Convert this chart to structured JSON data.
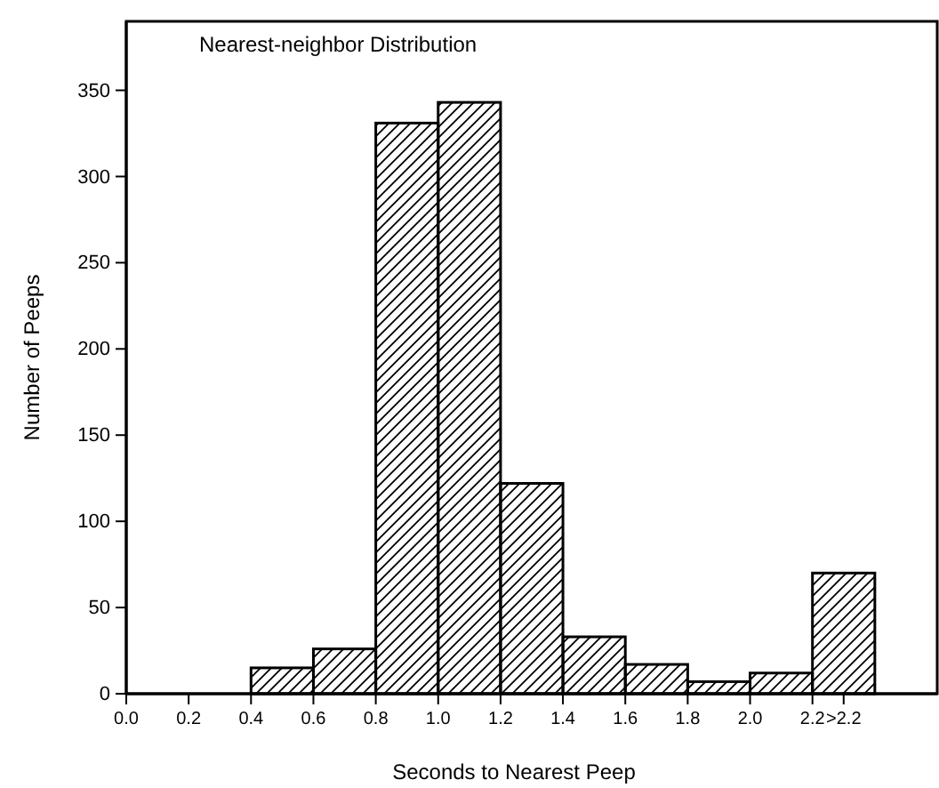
{
  "chart_data": {
    "type": "histogram",
    "title": "Nearest-neighbor Distribution",
    "xlabel": "Seconds to Nearest Peep",
    "ylabel": "Number of Peeps",
    "bins": [
      0.4,
      0.6,
      0.8,
      1.0,
      1.2,
      1.4,
      1.6,
      1.8,
      2.0,
      2.2,
      2.4
    ],
    "values": [
      15,
      26,
      331,
      343,
      122,
      33,
      17,
      7,
      12,
      70
    ],
    "color": "#000000",
    "xlim": [
      0,
      2.6
    ],
    "ylim": [
      0,
      390
    ],
    "xticks": [
      {
        "value": 0,
        "label": "0.0"
      },
      {
        "value": 0.2,
        "label": "0.2"
      },
      {
        "value": 0.4,
        "label": "0.4"
      },
      {
        "value": 0.6,
        "label": "0.6"
      },
      {
        "value": 0.8,
        "label": "0.8"
      },
      {
        "value": 1,
        "label": "1.0"
      },
      {
        "value": 1.2,
        "label": "1.2"
      },
      {
        "value": 1.4,
        "label": "1.4"
      },
      {
        "value": 1.6,
        "label": "1.6"
      },
      {
        "value": 1.8,
        "label": "1.8"
      },
      {
        "value": 2,
        "label": "2.0"
      },
      {
        "value": 2.2,
        "label": "2.2"
      },
      {
        "value": 2.3,
        "label": ">2.2"
      }
    ],
    "yticks": [
      0,
      50,
      100,
      150,
      200,
      250,
      300,
      350
    ],
    "grid": false
  }
}
